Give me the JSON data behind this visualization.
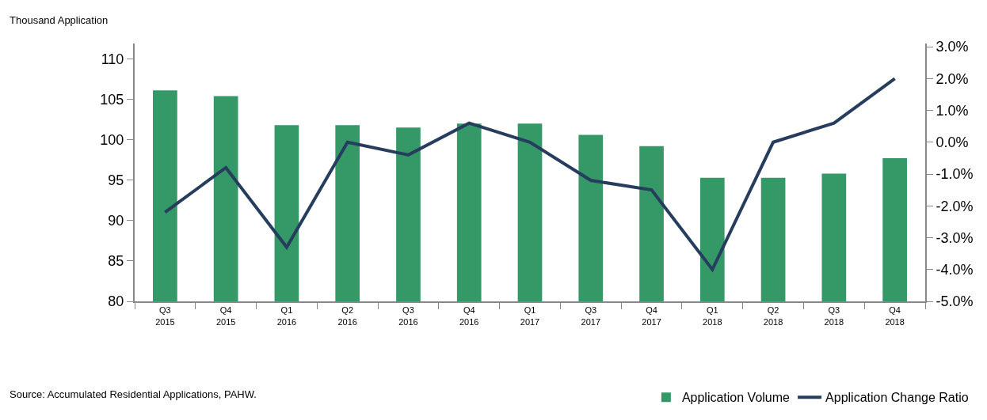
{
  "chart_data": {
    "type": "bar",
    "ylabel": "Thousand Application",
    "categories": [
      "Q3\n2015",
      "Q4\n2015",
      "Q1\n2016",
      "Q2\n2016",
      "Q3\n2016",
      "Q4\n2016",
      "Q1\n2017",
      "Q3\n2017",
      "Q4\n2017",
      "Q1\n2018",
      "Q2\n2018",
      "Q3\n2018",
      "Q4\n2018"
    ],
    "series": [
      {
        "name": "Application Volume",
        "color": "#359967",
        "values": [
          106.1,
          105.4,
          101.8,
          101.8,
          101.5,
          102.0,
          102.0,
          100.6,
          99.2,
          95.3,
          95.3,
          95.8,
          97.7
        ]
      },
      {
        "name": "Application Change Ratio",
        "type": "line",
        "axis": "y2",
        "color": "#263d5e",
        "values": [
          -2.2,
          -0.8,
          -3.3,
          0.0,
          -0.4,
          0.6,
          0.0,
          -1.2,
          -1.5,
          -4.0,
          0.0,
          0.6,
          2.0
        ]
      }
    ],
    "ylim": [
      80,
      111.9
    ],
    "yticks": [
      80,
      85,
      90,
      95,
      100,
      105,
      110
    ],
    "y2lim": [
      -5,
      3.1
    ],
    "y2ticks": [
      {
        "value": -5,
        "label": "-5.0%"
      },
      {
        "value": -4,
        "label": "-4.0%"
      },
      {
        "value": -3,
        "label": "-3.0%"
      },
      {
        "value": -2,
        "label": "-2.0%"
      },
      {
        "value": -1,
        "label": "-1.0%"
      },
      {
        "value": 0,
        "label": "0.0%"
      },
      {
        "value": 1,
        "label": "1.0%"
      },
      {
        "value": 2,
        "label": "2.0%"
      },
      {
        "value": 3,
        "label": "3.0%"
      }
    ],
    "grid": false,
    "legend": "bottom right",
    "marker": "none",
    "line_style": "solid",
    "annotations": [
      "Source: Accumulated Residential Applications, PAHW."
    ]
  }
}
